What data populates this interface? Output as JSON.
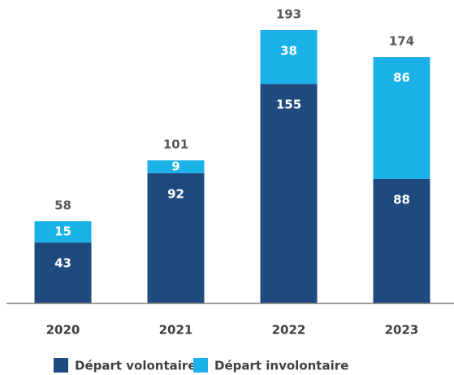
{
  "chart_data": {
    "type": "stacked_bar",
    "categories": [
      "2020",
      "2021",
      "2022",
      "2023"
    ],
    "series": [
      {
        "name": "Départ volontaire",
        "color": "#1f4a7d",
        "values": [
          43,
          92,
          155,
          88
        ]
      },
      {
        "name": "Départ involontaire",
        "color": "#1ab0e8",
        "values": [
          15,
          9,
          38,
          86
        ]
      }
    ],
    "totals": [
      58,
      101,
      193,
      174
    ]
  }
}
